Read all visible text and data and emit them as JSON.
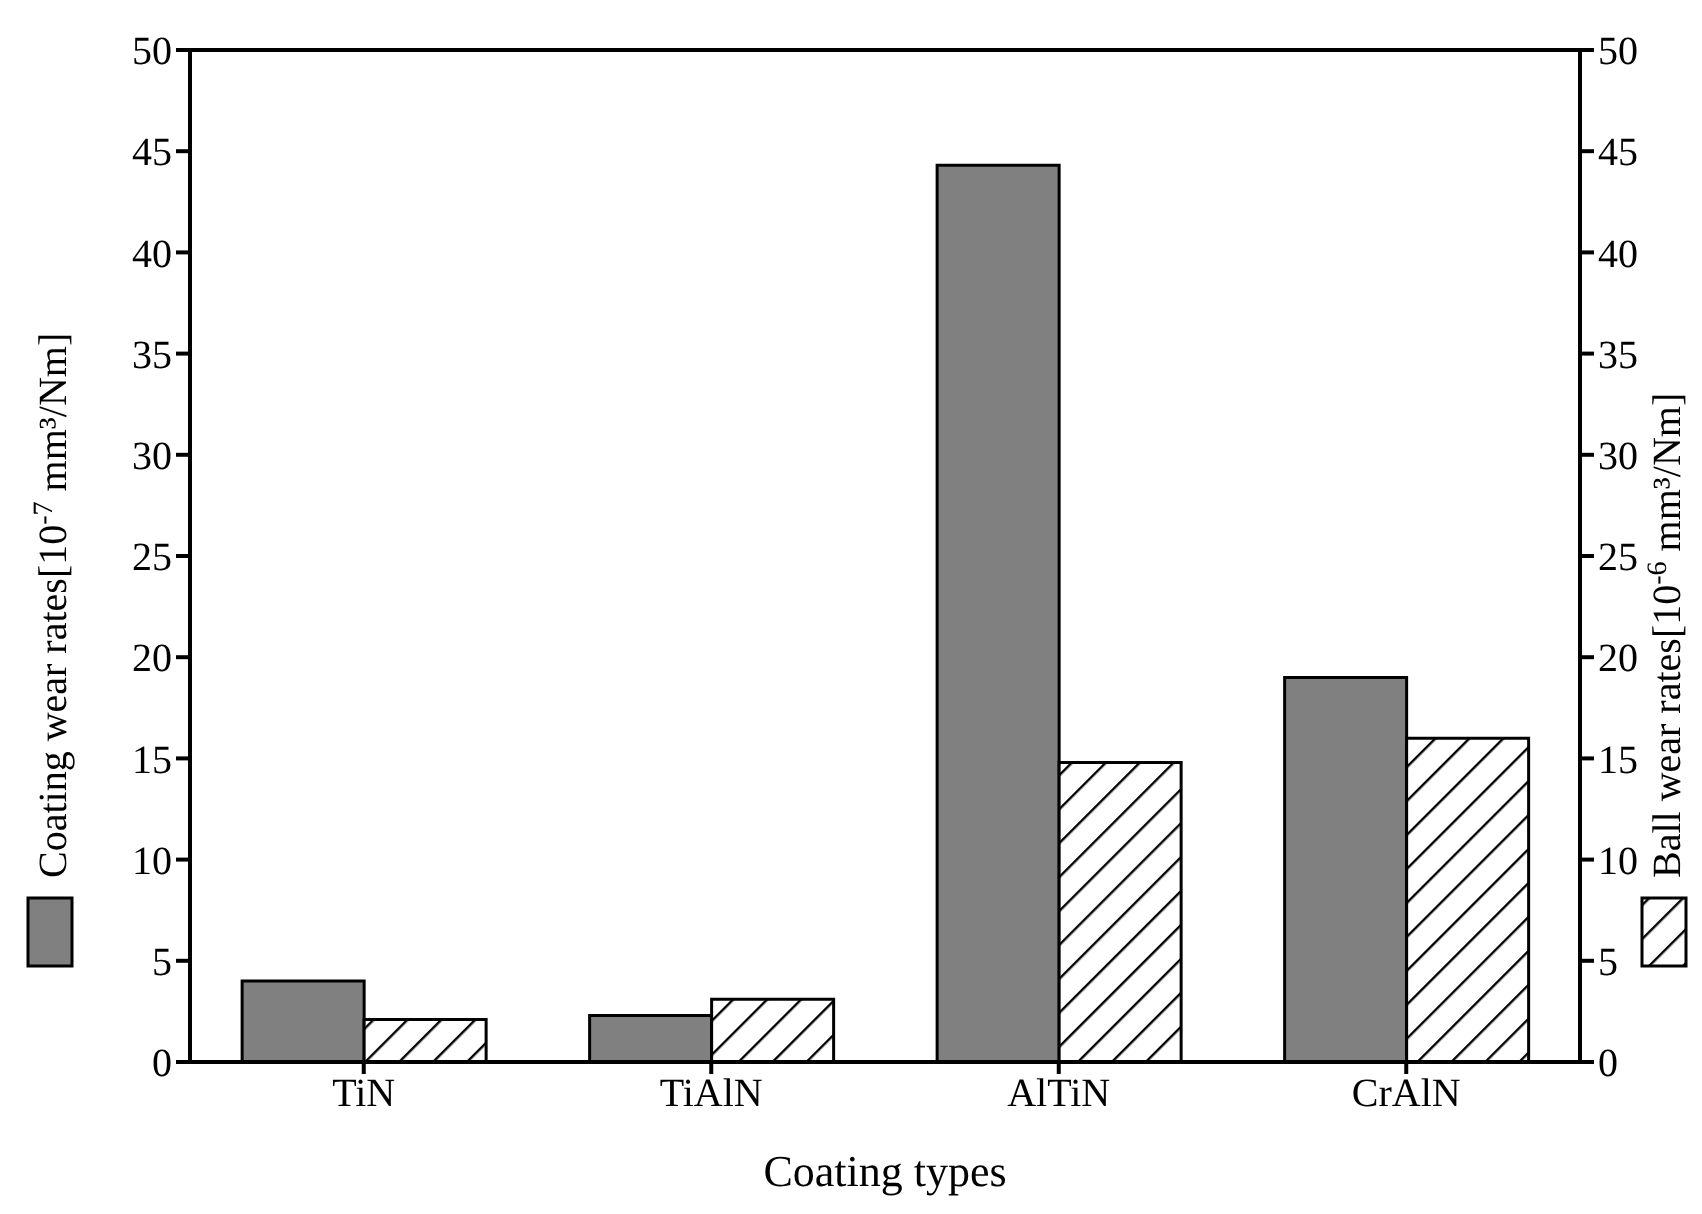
{
  "chart_data": {
    "type": "bar",
    "xlabel": "Coating types",
    "ylabel": "Coating wear rates[10$^{-7}$ mm³/Nm]",
    "y2label": "Ball wear rates[10$^{-6}$ mm³/Nm]",
    "categories": [
      "TiN",
      "TiAlN",
      "AlTiN",
      "CrAlN"
    ],
    "series": [
      {
        "color": "#808080",
        "values": [
          4.0,
          2.3,
          44.3,
          19.0
        ]
      },
      {
        "color": "#000000",
        "axis": "y2",
        "values": [
          2.1,
          3.1,
          14.8,
          16.0
        ]
      }
    ],
    "ylim": [
      0,
      50
    ],
    "yticks": [
      0,
      5,
      10,
      15,
      20,
      25,
      30,
      35,
      40,
      45,
      50
    ],
    "y2lim": [
      0,
      50
    ],
    "y2ticks": [
      0,
      5,
      10,
      15,
      20,
      25,
      30,
      35,
      40,
      45,
      50
    ],
    "grid": false,
    "legend": false
  }
}
